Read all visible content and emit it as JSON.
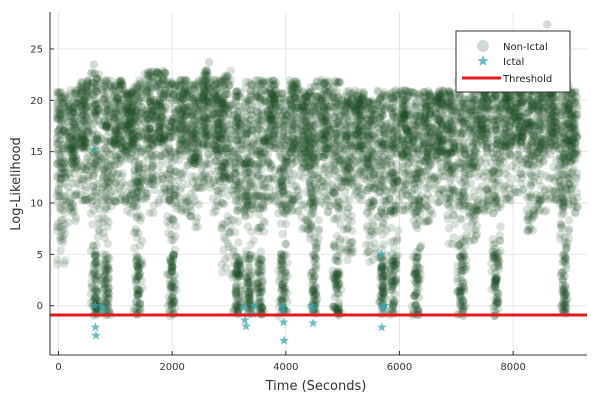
{
  "chart_data": {
    "type": "scatter",
    "title": "",
    "xlabel": "Time (Seconds)",
    "ylabel": "Log-Likelihood",
    "xlim": [
      -150,
      9300
    ],
    "ylim": [
      -4.8,
      28.6
    ],
    "xticks": [
      0,
      2000,
      4000,
      6000,
      8000
    ],
    "yticks": [
      0,
      5,
      10,
      15,
      20,
      25
    ],
    "xtick_labels": [
      "0",
      "2000",
      "4000",
      "6000",
      "8000"
    ],
    "ytick_labels": [
      "0",
      "5",
      "10",
      "15",
      "20",
      "25"
    ],
    "grid": true,
    "legend_position": "top-right",
    "legend": [
      "Non-Ictal",
      "Ictal",
      "Threshold"
    ],
    "colors": {
      "non_ictal": "#1b4d23",
      "ictal": "#3aa6ad",
      "threshold": "#e31a1c"
    },
    "threshold": -0.9,
    "non_ictal_density": {
      "note_columns": [
        {
          "x": 50,
          "lo": 4,
          "hi": 21
        },
        {
          "x": 250,
          "lo": 8,
          "hi": 21
        },
        {
          "x": 450,
          "lo": 10,
          "hi": 22
        },
        {
          "x": 650,
          "lo": -1,
          "hi": 23
        },
        {
          "x": 850,
          "lo": -1,
          "hi": 22
        },
        {
          "x": 1050,
          "lo": 10,
          "hi": 22
        },
        {
          "x": 1250,
          "lo": 9,
          "hi": 21
        },
        {
          "x": 1400,
          "lo": -1,
          "hi": 22
        },
        {
          "x": 1600,
          "lo": 9,
          "hi": 23
        },
        {
          "x": 1800,
          "lo": 10,
          "hi": 23
        },
        {
          "x": 2000,
          "lo": -1,
          "hi": 22
        },
        {
          "x": 2200,
          "lo": 9,
          "hi": 22
        },
        {
          "x": 2400,
          "lo": 7,
          "hi": 22
        },
        {
          "x": 2600,
          "lo": 11,
          "hi": 23
        },
        {
          "x": 2800,
          "lo": 9,
          "hi": 22
        },
        {
          "x": 2950,
          "lo": 3,
          "hi": 23
        },
        {
          "x": 3150,
          "lo": -1,
          "hi": 21
        },
        {
          "x": 3350,
          "lo": -1,
          "hi": 22
        },
        {
          "x": 3550,
          "lo": -1,
          "hi": 22
        },
        {
          "x": 3750,
          "lo": 10,
          "hi": 22
        },
        {
          "x": 3950,
          "lo": -1,
          "hi": 21
        },
        {
          "x": 4150,
          "lo": 9,
          "hi": 22
        },
        {
          "x": 4350,
          "lo": 7,
          "hi": 21
        },
        {
          "x": 4500,
          "lo": -1,
          "hi": 22
        },
        {
          "x": 4700,
          "lo": 8,
          "hi": 22
        },
        {
          "x": 4900,
          "lo": -1,
          "hi": 22
        },
        {
          "x": 5100,
          "lo": 4,
          "hi": 21
        },
        {
          "x": 5300,
          "lo": 10,
          "hi": 21
        },
        {
          "x": 5500,
          "lo": 4,
          "hi": 20
        },
        {
          "x": 5700,
          "lo": -1,
          "hi": 21
        },
        {
          "x": 5900,
          "lo": -1,
          "hi": 21
        },
        {
          "x": 6100,
          "lo": 9,
          "hi": 21
        },
        {
          "x": 6300,
          "lo": -1,
          "hi": 21
        },
        {
          "x": 6500,
          "lo": 8,
          "hi": 21
        },
        {
          "x": 6700,
          "lo": 10,
          "hi": 21
        },
        {
          "x": 6900,
          "lo": 6,
          "hi": 21
        },
        {
          "x": 7100,
          "lo": -1,
          "hi": 22
        },
        {
          "x": 7300,
          "lo": 6,
          "hi": 22
        },
        {
          "x": 7500,
          "lo": 9,
          "hi": 22
        },
        {
          "x": 7700,
          "lo": -1,
          "hi": 22
        },
        {
          "x": 7900,
          "lo": 10,
          "hi": 22
        },
        {
          "x": 8100,
          "lo": 11,
          "hi": 22
        },
        {
          "x": 8300,
          "lo": 7,
          "hi": 22
        },
        {
          "x": 8500,
          "lo": 9,
          "hi": 22
        },
        {
          "x": 8700,
          "lo": 10,
          "hi": 22
        },
        {
          "x": 8900,
          "lo": -1,
          "hi": 22
        },
        {
          "x": 9050,
          "lo": 8,
          "hi": 21
        }
      ],
      "outliers": [
        [
          8600,
          27.4
        ],
        [
          2650,
          23.7
        ],
        [
          620,
          23.5
        ]
      ]
    },
    "ictal_points": [
      [
        630,
        15.2
      ],
      [
        640,
        0.0
      ],
      [
        650,
        -2.1
      ],
      [
        660,
        -2.9
      ],
      [
        760,
        -0.1
      ],
      [
        790,
        -0.6
      ],
      [
        3260,
        -0.2
      ],
      [
        3280,
        -1.4
      ],
      [
        3300,
        -2.0
      ],
      [
        3420,
        -0.8
      ],
      [
        3440,
        0.0
      ],
      [
        3940,
        0.0
      ],
      [
        3950,
        -0.5
      ],
      [
        3960,
        -1.6
      ],
      [
        3970,
        -3.4
      ],
      [
        4460,
        0.0
      ],
      [
        4470,
        -0.3
      ],
      [
        4480,
        -1.7
      ],
      [
        5680,
        5.0
      ],
      [
        5690,
        -2.1
      ],
      [
        5700,
        0.0
      ],
      [
        5720,
        -0.3
      ],
      [
        5740,
        0.0
      ]
    ]
  }
}
